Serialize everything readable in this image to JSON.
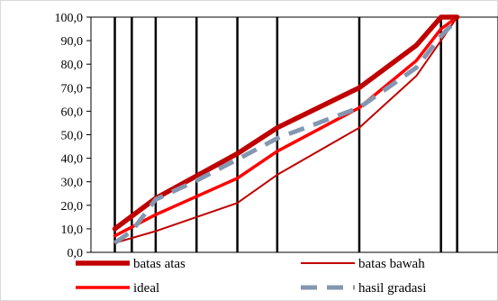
{
  "chart_data": {
    "type": "line",
    "title": "",
    "xlabel": "",
    "ylabel": "",
    "ylim": [
      0,
      100
    ],
    "yticks": [
      "0,0",
      "10,0",
      "20,0",
      "30,0",
      "40,0",
      "50,0",
      "60,0",
      "70,0",
      "80,0",
      "90,0",
      "100,0"
    ],
    "x_scale": "log",
    "xlim": [
      0.05,
      50
    ],
    "vertical_gridlines_x": [
      0.075,
      0.1,
      0.15,
      0.3,
      0.6,
      1.18,
      4.75,
      19,
      25
    ],
    "grid": "vertical lines only",
    "legend_position": "bottom",
    "series": [
      {
        "name": "batas atas",
        "color": "#c00000",
        "style": "solid-thick",
        "points": [
          [
            0.075,
            10
          ],
          [
            0.15,
            23
          ],
          [
            0.6,
            42
          ],
          [
            1.18,
            53
          ],
          [
            4.75,
            70
          ],
          [
            12.5,
            88
          ],
          [
            19,
            100
          ],
          [
            25,
            100
          ]
        ]
      },
      {
        "name": "batas bawah",
        "color": "#c00000",
        "style": "solid-thin",
        "points": [
          [
            0.075,
            4
          ],
          [
            0.15,
            9
          ],
          [
            0.6,
            21
          ],
          [
            1.18,
            33
          ],
          [
            4.75,
            53
          ],
          [
            12.5,
            75
          ],
          [
            19,
            90
          ],
          [
            25,
            100
          ]
        ]
      },
      {
        "name": "ideal",
        "color": "#ff0000",
        "style": "solid-medium",
        "points": [
          [
            0.075,
            7
          ],
          [
            0.15,
            16
          ],
          [
            0.6,
            31.5
          ],
          [
            1.18,
            43
          ],
          [
            4.75,
            61.5
          ],
          [
            12.5,
            81.5
          ],
          [
            19,
            95
          ],
          [
            25,
            100
          ]
        ]
      },
      {
        "name": "hasil gradasi",
        "color": "#8497b0",
        "style": "dashed",
        "points": [
          [
            0.075,
            4
          ],
          [
            0.1,
            9
          ],
          [
            0.15,
            22.5
          ],
          [
            0.3,
            30.5
          ],
          [
            0.6,
            39.5
          ],
          [
            1.18,
            48.5
          ],
          [
            4.75,
            61.5
          ],
          [
            12.5,
            78.5
          ],
          [
            19,
            92
          ],
          [
            25,
            99
          ]
        ]
      }
    ]
  }
}
